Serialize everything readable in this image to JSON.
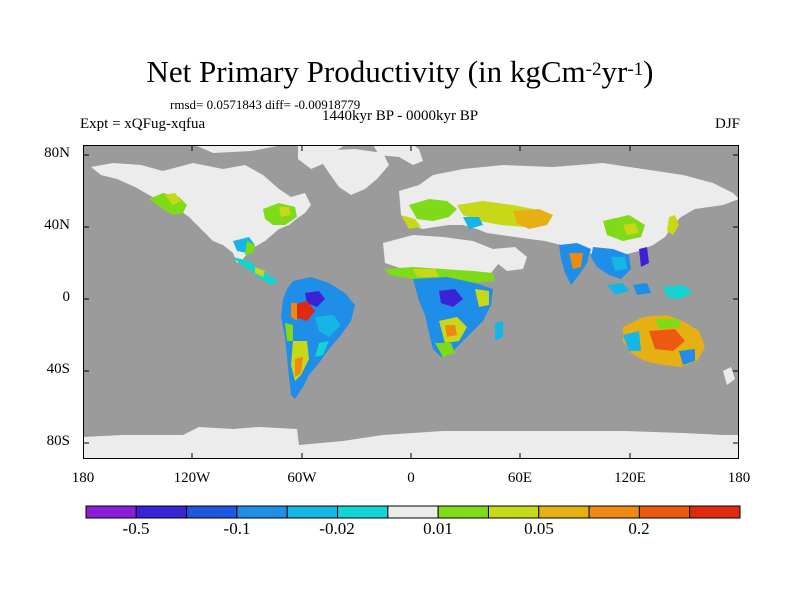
{
  "title": {
    "text": "Net Primary Productivity (in kgCm",
    "sup1": "-2",
    "mid": "yr",
    "sup2": "-1",
    "end": ")"
  },
  "stats": "rmsd= 0.0571843 diff= -0.00918779",
  "period": "1440kyr BP - 0000kyr BP",
  "experiment": "Expt = xQFug-xqfua",
  "season": "DJF",
  "y_ticks": [
    "80N",
    "40N",
    "0",
    "40S",
    "80S"
  ],
  "x_ticks": [
    "180",
    "120W",
    "60W",
    "0",
    "60E",
    "120E",
    "180"
  ],
  "colors": {
    "ocean": "#9b9b9b",
    "neutral_land": "#ececec",
    "scale": [
      "#8a1fd8",
      "#3a22d6",
      "#1f57e0",
      "#1e8ee8",
      "#15b6e6",
      "#14d4d2",
      "#ececec",
      "#7fda18",
      "#c7d818",
      "#e6b012",
      "#ee8a10",
      "#ec5a12",
      "#e02a10"
    ]
  },
  "colorbar_labels": [
    "-0.5",
    "-0.1",
    "-0.02",
    "0.01",
    "0.05",
    "0.2"
  ]
}
